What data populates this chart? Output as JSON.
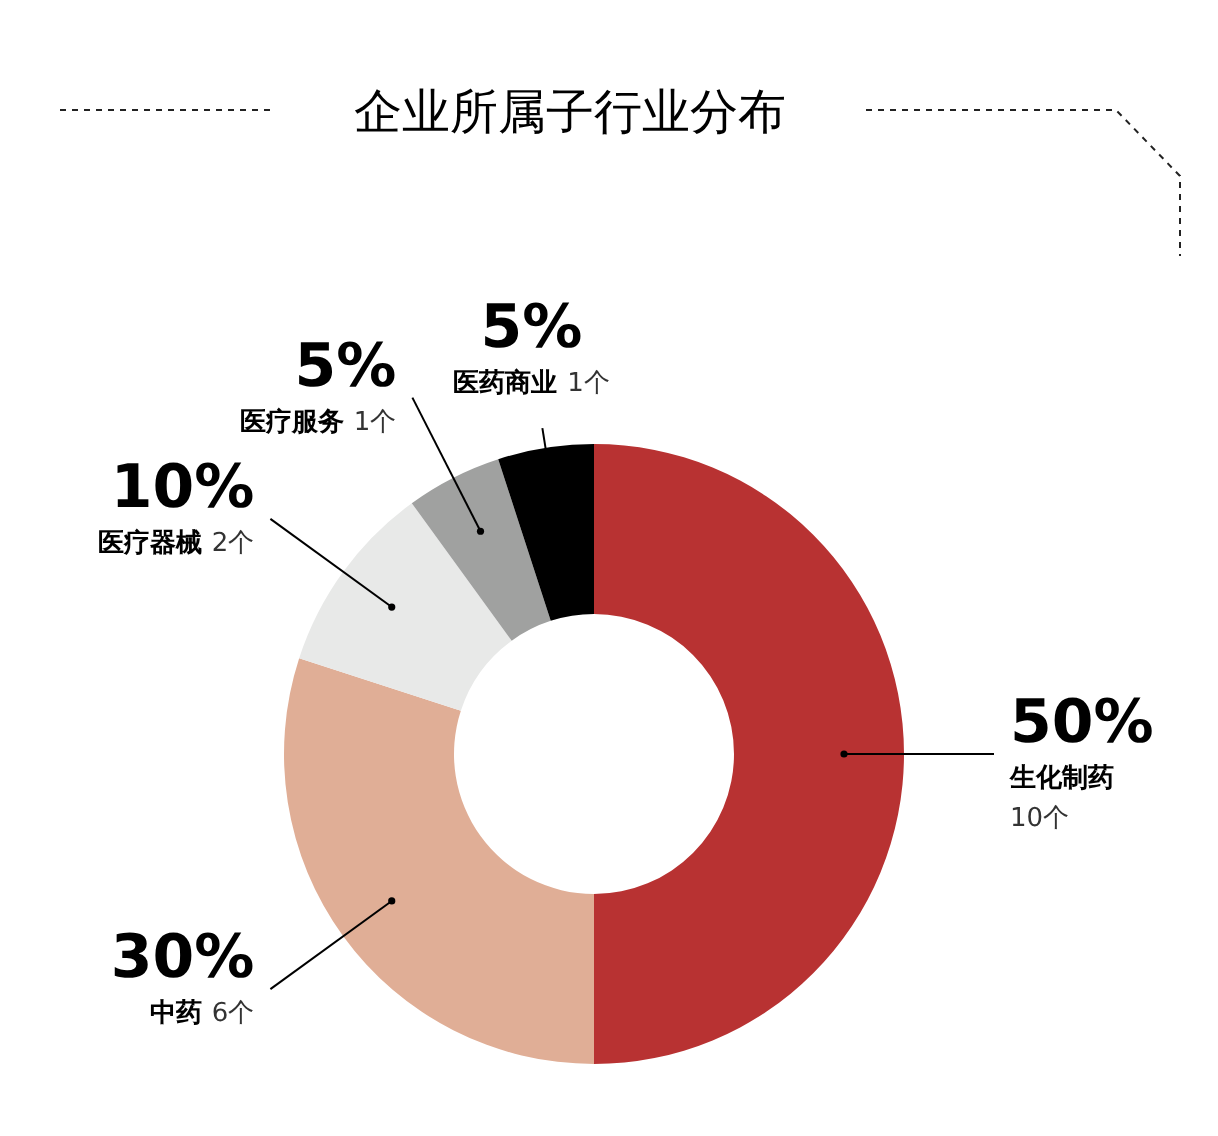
{
  "chart_data": {
    "type": "donut",
    "title": "企业所属子行业分布",
    "categories": [
      "生化制药",
      "中药",
      "医疗器械",
      "医疗服务",
      "医药商业"
    ],
    "values": [
      50,
      30,
      10,
      5,
      5
    ],
    "colors": [
      "#b83232",
      "#e0ae96",
      "#e8e9e8",
      "#a0a1a0",
      "#000000"
    ],
    "value_labels": [
      "50%",
      "30%",
      "10%",
      "5%",
      "5%"
    ],
    "annotations": [
      {
        "text": "10个",
        "x": "生化制药"
      },
      {
        "text": "6个",
        "x": "中药"
      },
      {
        "text": "2个",
        "x": "医疗器械"
      },
      {
        "text": "1个",
        "x": "医疗服务"
      },
      {
        "text": "1个",
        "x": "医药商业"
      }
    ],
    "legend": false
  }
}
